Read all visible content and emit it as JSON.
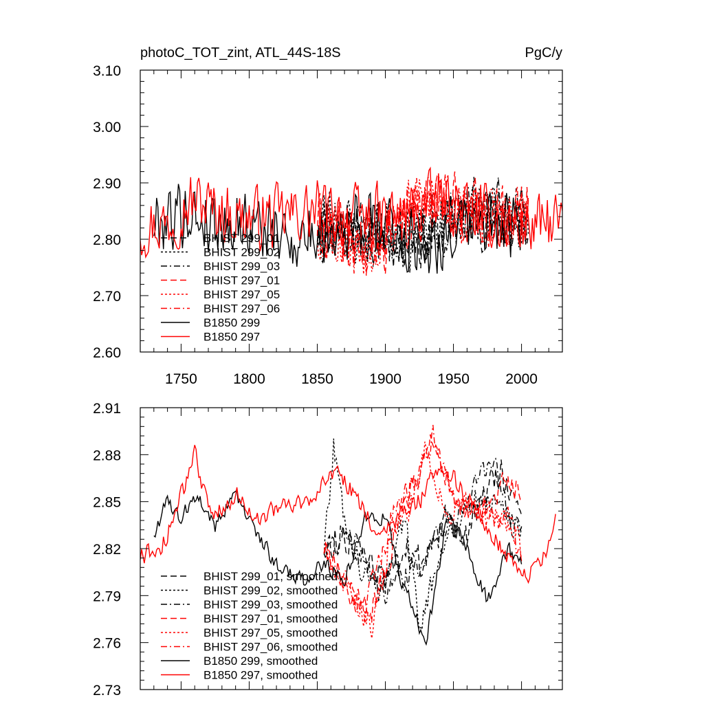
{
  "colors": {
    "black": "#000000",
    "red": "#ff0000"
  },
  "chart_data": [
    {
      "type": "line",
      "title": "photoC_TOT_zint, ATL_44S-18S",
      "units": "PgC/y",
      "xlim": [
        1720,
        2030
      ],
      "ylim": [
        2.6,
        3.1
      ],
      "xticks": [
        1750,
        1800,
        1850,
        1900,
        1950,
        2000
      ],
      "xtick_labels": [
        "1750",
        "1800",
        "1850",
        "1900",
        "1950",
        "2000"
      ],
      "yticks": [
        2.6,
        2.7,
        2.8,
        2.9,
        3.0,
        3.1
      ],
      "ytick_labels": [
        "2.60",
        "2.70",
        "2.80",
        "2.90",
        "3.00",
        "3.10"
      ],
      "legend_position": "bottom-left",
      "series": [
        {
          "name": "BHIST 299_01",
          "color": "#000000",
          "dash": "long-dash",
          "x_start": 1850,
          "x_end": 2005,
          "keys": [
            [
              1850,
              2.82
            ],
            [
              1870,
              2.83
            ],
            [
              1890,
              2.8
            ],
            [
              1910,
              2.81
            ],
            [
              1930,
              2.8
            ],
            [
              1950,
              2.83
            ],
            [
              1970,
              2.84
            ],
            [
              1990,
              2.83
            ],
            [
              2005,
              2.84
            ]
          ],
          "amp": 0.065,
          "seed": 11
        },
        {
          "name": "BHIST 299_02",
          "color": "#000000",
          "dash": "dot",
          "x_start": 1850,
          "x_end": 2005,
          "keys": [
            [
              1850,
              2.82
            ],
            [
              1860,
              2.86
            ],
            [
              1880,
              2.8
            ],
            [
              1900,
              2.82
            ],
            [
              1920,
              2.8
            ],
            [
              1950,
              2.84
            ],
            [
              1980,
              2.84
            ],
            [
              2005,
              2.83
            ]
          ],
          "amp": 0.065,
          "seed": 23
        },
        {
          "name": "BHIST 299_03",
          "color": "#000000",
          "dash": "dash-dot",
          "x_start": 1850,
          "x_end": 2005,
          "keys": [
            [
              1850,
              2.82
            ],
            [
              1880,
              2.81
            ],
            [
              1900,
              2.8
            ],
            [
              1925,
              2.81
            ],
            [
              1950,
              2.83
            ],
            [
              1975,
              2.86
            ],
            [
              2005,
              2.84
            ]
          ],
          "amp": 0.065,
          "seed": 37
        },
        {
          "name": "BHIST 297_01",
          "color": "#ff0000",
          "dash": "long-dash",
          "x_start": 1850,
          "x_end": 2005,
          "keys": [
            [
              1850,
              2.83
            ],
            [
              1880,
              2.79
            ],
            [
              1900,
              2.8
            ],
            [
              1925,
              2.85
            ],
            [
              1935,
              2.88
            ],
            [
              1960,
              2.85
            ],
            [
              1990,
              2.84
            ],
            [
              2005,
              2.85
            ]
          ],
          "amp": 0.065,
          "seed": 41
        },
        {
          "name": "BHIST 297_05",
          "color": "#ff0000",
          "dash": "dot",
          "x_start": 1850,
          "x_end": 2005,
          "keys": [
            [
              1850,
              2.82
            ],
            [
              1885,
              2.78
            ],
            [
              1910,
              2.84
            ],
            [
              1935,
              2.88
            ],
            [
              1960,
              2.84
            ],
            [
              1990,
              2.84
            ],
            [
              2005,
              2.83
            ]
          ],
          "amp": 0.065,
          "seed": 53
        },
        {
          "name": "BHIST 297_06",
          "color": "#ff0000",
          "dash": "dash-dot",
          "x_start": 1850,
          "x_end": 2005,
          "keys": [
            [
              1850,
              2.83
            ],
            [
              1885,
              2.79
            ],
            [
              1915,
              2.85
            ],
            [
              1935,
              2.87
            ],
            [
              1960,
              2.84
            ],
            [
              1990,
              2.84
            ],
            [
              2005,
              2.84
            ]
          ],
          "amp": 0.065,
          "seed": 67
        },
        {
          "name": "B1850 299",
          "color": "#000000",
          "dash": "solid",
          "x_start": 1730,
          "x_end": 2000,
          "keys": [
            [
              1730,
              2.83
            ],
            [
              1750,
              2.85
            ],
            [
              1775,
              2.83
            ],
            [
              1800,
              2.83
            ],
            [
              1830,
              2.8
            ],
            [
              1850,
              2.81
            ],
            [
              1880,
              2.83
            ],
            [
              1900,
              2.82
            ],
            [
              1925,
              2.79
            ],
            [
              1950,
              2.81
            ],
            [
              1975,
              2.83
            ],
            [
              2000,
              2.81
            ]
          ],
          "amp": 0.07,
          "seed": 79
        },
        {
          "name": "B1850 297",
          "color": "#ff0000",
          "dash": "solid",
          "x_start": 1720,
          "x_end": 2030,
          "keys": [
            [
              1720,
              2.82
            ],
            [
              1740,
              2.83
            ],
            [
              1760,
              2.87
            ],
            [
              1790,
              2.84
            ],
            [
              1820,
              2.84
            ],
            [
              1850,
              2.85
            ],
            [
              1880,
              2.84
            ],
            [
              1910,
              2.84
            ],
            [
              1940,
              2.87
            ],
            [
              1970,
              2.84
            ],
            [
              2000,
              2.82
            ],
            [
              2030,
              2.83
            ]
          ],
          "amp": 0.065,
          "seed": 97
        }
      ]
    },
    {
      "type": "line",
      "title": "",
      "xlim": [
        1720,
        2030
      ],
      "ylim": [
        2.73,
        2.91
      ],
      "xticks": [
        1750,
        1800,
        1850,
        1900,
        1950,
        2000
      ],
      "yticks": [
        2.73,
        2.76,
        2.79,
        2.82,
        2.85,
        2.88,
        2.91
      ],
      "ytick_labels": [
        "2.73",
        "2.76",
        "2.79",
        "2.82",
        "2.85",
        "2.88",
        "2.91"
      ],
      "legend_position": "bottom-left",
      "series": [
        {
          "name": "BHIST 299_01, smoothed",
          "color": "#000000",
          "dash": "long-dash",
          "x_start": 1855,
          "x_end": 2000,
          "keys": [
            [
              1855,
              2.82
            ],
            [
              1870,
              2.83
            ],
            [
              1885,
              2.81
            ],
            [
              1900,
              2.8
            ],
            [
              1915,
              2.82
            ],
            [
              1930,
              2.81
            ],
            [
              1945,
              2.84
            ],
            [
              1960,
              2.83
            ],
            [
              1975,
              2.86
            ],
            [
              1985,
              2.87
            ],
            [
              2000,
              2.84
            ]
          ],
          "amp": 0.012,
          "seed": 113
        },
        {
          "name": "BHIST 299_02, smoothed",
          "color": "#000000",
          "dash": "dot",
          "x_start": 1855,
          "x_end": 2000,
          "keys": [
            [
              1855,
              2.82
            ],
            [
              1862,
              2.885
            ],
            [
              1870,
              2.84
            ],
            [
              1885,
              2.8
            ],
            [
              1900,
              2.8
            ],
            [
              1915,
              2.84
            ],
            [
              1925,
              2.77
            ],
            [
              1945,
              2.83
            ],
            [
              1965,
              2.85
            ],
            [
              1985,
              2.85
            ],
            [
              2000,
              2.83
            ]
          ],
          "amp": 0.01,
          "seed": 127
        },
        {
          "name": "BHIST 299_03, smoothed",
          "color": "#000000",
          "dash": "dash-dot",
          "x_start": 1855,
          "x_end": 2000,
          "keys": [
            [
              1855,
              2.82
            ],
            [
              1880,
              2.83
            ],
            [
              1895,
              2.79
            ],
            [
              1910,
              2.8
            ],
            [
              1925,
              2.81
            ],
            [
              1940,
              2.83
            ],
            [
              1955,
              2.84
            ],
            [
              1970,
              2.87
            ],
            [
              1980,
              2.875
            ],
            [
              1990,
              2.84
            ],
            [
              2000,
              2.83
            ]
          ],
          "amp": 0.01,
          "seed": 131
        },
        {
          "name": "BHIST 297_01, smoothed",
          "color": "#ff0000",
          "dash": "long-dash",
          "x_start": 1855,
          "x_end": 2000,
          "keys": [
            [
              1855,
              2.82
            ],
            [
              1875,
              2.79
            ],
            [
              1890,
              2.78
            ],
            [
              1905,
              2.82
            ],
            [
              1920,
              2.86
            ],
            [
              1935,
              2.89
            ],
            [
              1950,
              2.85
            ],
            [
              1965,
              2.84
            ],
            [
              1985,
              2.86
            ],
            [
              2000,
              2.86
            ]
          ],
          "amp": 0.01,
          "seed": 137
        },
        {
          "name": "BHIST 297_05, smoothed",
          "color": "#ff0000",
          "dash": "dot",
          "x_start": 1855,
          "x_end": 2000,
          "keys": [
            [
              1855,
              2.82
            ],
            [
              1875,
              2.79
            ],
            [
              1890,
              2.77
            ],
            [
              1905,
              2.83
            ],
            [
              1920,
              2.85
            ],
            [
              1930,
              2.885
            ],
            [
              1945,
              2.84
            ],
            [
              1965,
              2.85
            ],
            [
              1985,
              2.84
            ],
            [
              2000,
              2.82
            ]
          ],
          "amp": 0.01,
          "seed": 149
        },
        {
          "name": "BHIST 297_06, smoothed",
          "color": "#ff0000",
          "dash": "dash-dot",
          "x_start": 1855,
          "x_end": 2000,
          "keys": [
            [
              1855,
              2.82
            ],
            [
              1870,
              2.8
            ],
            [
              1885,
              2.78
            ],
            [
              1905,
              2.84
            ],
            [
              1925,
              2.87
            ],
            [
              1935,
              2.89
            ],
            [
              1950,
              2.85
            ],
            [
              1970,
              2.84
            ],
            [
              1990,
              2.84
            ],
            [
              2000,
              2.81
            ]
          ],
          "amp": 0.01,
          "seed": 151
        },
        {
          "name": "B1850 299, smoothed",
          "color": "#000000",
          "dash": "solid",
          "x_start": 1730,
          "x_end": 2000,
          "keys": [
            [
              1730,
              2.83
            ],
            [
              1740,
              2.85
            ],
            [
              1750,
              2.84
            ],
            [
              1762,
              2.855
            ],
            [
              1775,
              2.835
            ],
            [
              1790,
              2.855
            ],
            [
              1805,
              2.83
            ],
            [
              1820,
              2.81
            ],
            [
              1840,
              2.8
            ],
            [
              1855,
              2.81
            ],
            [
              1870,
              2.8
            ],
            [
              1885,
              2.84
            ],
            [
              1900,
              2.84
            ],
            [
              1912,
              2.8
            ],
            [
              1930,
              2.76
            ],
            [
              1945,
              2.84
            ],
            [
              1960,
              2.82
            ],
            [
              1975,
              2.785
            ],
            [
              1990,
              2.82
            ],
            [
              2000,
              2.81
            ]
          ],
          "amp": 0.006,
          "seed": 163
        },
        {
          "name": "B1850 297, smoothed",
          "color": "#ff0000",
          "dash": "solid",
          "x_start": 1720,
          "x_end": 2025,
          "keys": [
            [
              1720,
              2.815
            ],
            [
              1735,
              2.82
            ],
            [
              1745,
              2.84
            ],
            [
              1760,
              2.88
            ],
            [
              1772,
              2.84
            ],
            [
              1790,
              2.855
            ],
            [
              1805,
              2.84
            ],
            [
              1820,
              2.845
            ],
            [
              1840,
              2.85
            ],
            [
              1855,
              2.86
            ],
            [
              1865,
              2.87
            ],
            [
              1880,
              2.85
            ],
            [
              1895,
              2.83
            ],
            [
              1910,
              2.84
            ],
            [
              1925,
              2.85
            ],
            [
              1940,
              2.875
            ],
            [
              1955,
              2.86
            ],
            [
              1970,
              2.84
            ],
            [
              1985,
              2.82
            ],
            [
              2000,
              2.8
            ],
            [
              2015,
              2.81
            ],
            [
              2025,
              2.84
            ]
          ],
          "amp": 0.007,
          "seed": 173
        }
      ]
    }
  ]
}
